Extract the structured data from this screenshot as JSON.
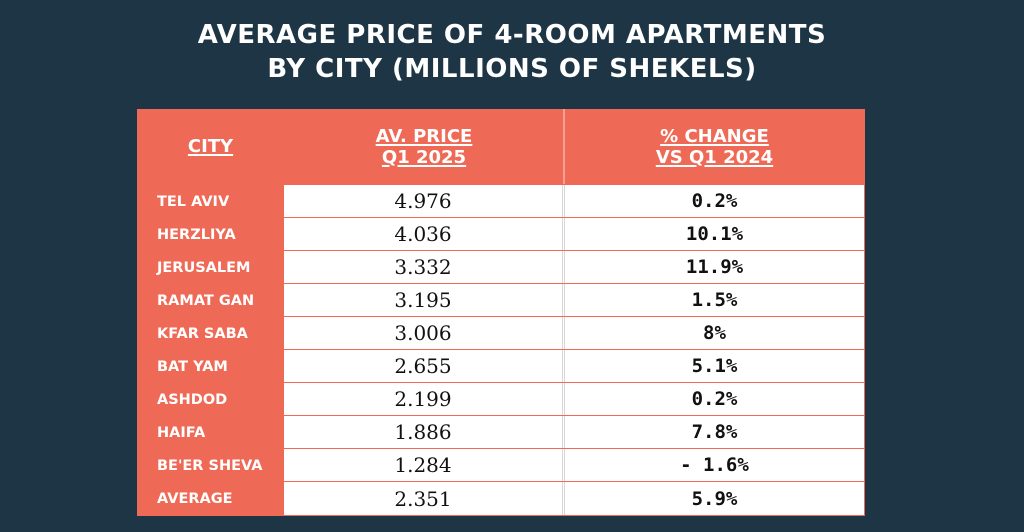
{
  "title": {
    "line1": "AVERAGE PRICE OF 4-ROOM APARTMENTS",
    "line2": "BY CITY (MILLIONS OF SHEKELS)"
  },
  "chart_data": {
    "type": "table",
    "title": "AVERAGE PRICE OF 4-ROOM APARTMENTS BY CITY (MILLIONS OF SHEKELS)",
    "columns": [
      {
        "line1": "CITY",
        "line2": ""
      },
      {
        "line1": "AV. PRICE",
        "line2": "Q1 2025"
      },
      {
        "line1": "% CHANGE",
        "line2": "VS Q1 2024"
      }
    ],
    "rows": [
      {
        "city": "TEL AVIV",
        "price": "4.976",
        "change": "0.2%"
      },
      {
        "city": "HERZLIYA",
        "price": "4.036",
        "change": "10.1%"
      },
      {
        "city": "JERUSALEM",
        "price": "3.332",
        "change": "11.9%"
      },
      {
        "city": "RAMAT GAN",
        "price": "3.195",
        "change": "1.5%"
      },
      {
        "city": "KFAR SABA",
        "price": "3.006",
        "change": "8%"
      },
      {
        "city": "BAT YAM",
        "price": "2.655",
        "change": "5.1%"
      },
      {
        "city": "ASHDOD",
        "price": "2.199",
        "change": "0.2%"
      },
      {
        "city": "HAIFA",
        "price": "1.886",
        "change": "7.8%"
      },
      {
        "city": "BE'ER SHEVA",
        "price": "1.284",
        "change": "- 1.6%"
      },
      {
        "city": "AVERAGE",
        "price": "2.351",
        "change": "5.9%"
      }
    ]
  },
  "colors": {
    "background": "#1d3545",
    "header": "#ef6a56",
    "cell": "#ffffff"
  }
}
